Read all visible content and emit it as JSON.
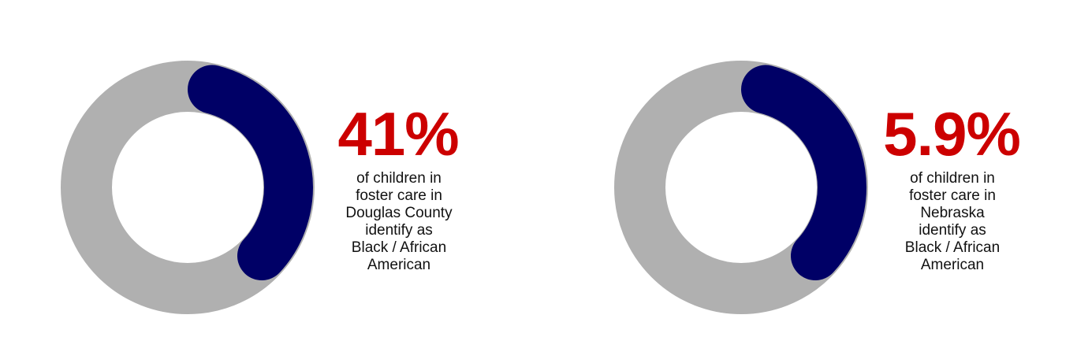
{
  "stats": [
    {
      "value": "41%",
      "caption": [
        "of children in",
        "foster care in",
        "Douglas County",
        "identify as",
        "Black / African",
        "American"
      ]
    },
    {
      "value": "5.9%",
      "caption": [
        "of children in",
        "foster care in",
        "Nebraska",
        "identify as",
        "Black / African",
        "American"
      ]
    }
  ]
}
